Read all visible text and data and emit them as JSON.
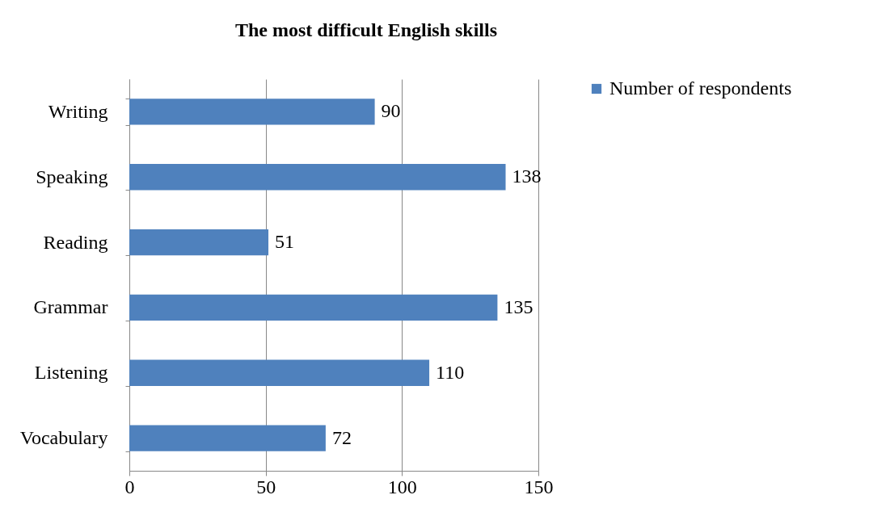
{
  "chart_data": {
    "type": "bar",
    "orientation": "horizontal",
    "title": "The most difficult  English skills",
    "categories": [
      "Writing",
      "Speaking",
      "Reading",
      "Grammar",
      "Listening",
      "Vocabulary"
    ],
    "series": [
      {
        "name": "Number of respondents",
        "color": "#4f81bd",
        "values": [
          90,
          138,
          51,
          135,
          110,
          72
        ]
      }
    ],
    "xlim": [
      0,
      150
    ],
    "xticks": [
      0,
      50,
      100,
      150
    ],
    "grid": "x",
    "legend": "right",
    "data_labels": true
  }
}
